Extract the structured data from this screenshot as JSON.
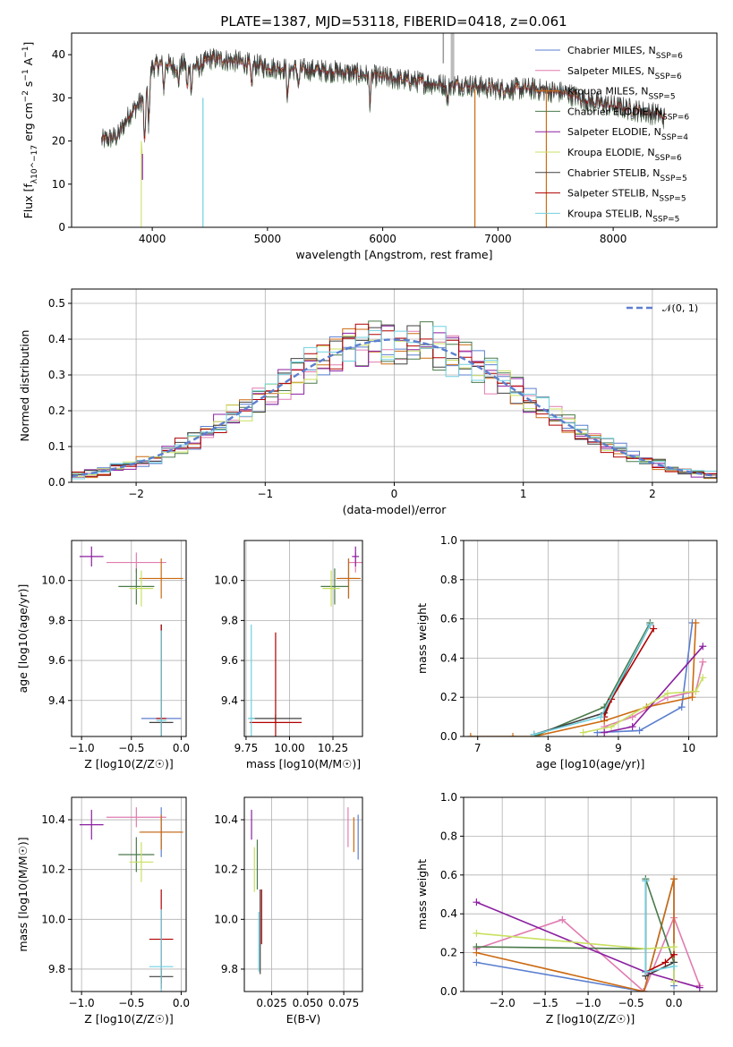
{
  "title": "PLATE=1387, MJD=53118, FIBERID=0418, z=0.061",
  "colors": [
    "#5b7fcf",
    "#e07cb0",
    "#cc6a10",
    "#4a7a4a",
    "#8b1fa0",
    "#c8e060",
    "#404040",
    "#b00000",
    "#70d0e0"
  ],
  "chart_data": [
    {
      "id": "spectrum",
      "type": "line",
      "xlabel": "wavelength [Angstrom, rest frame]",
      "ylabel": "Flux [f_λ10^−17 erg cm^−2 s^−1 A^−1]",
      "xlim": [
        3300,
        8900
      ],
      "ylim": [
        0,
        45
      ],
      "xticks": [
        4000,
        5000,
        6000,
        7000,
        8000
      ],
      "yticks": [
        0,
        10,
        20,
        30,
        40
      ],
      "legend": "top-right",
      "grid": false,
      "series": [
        {
          "name": "Chabrier MILES, N_SSP=6"
        },
        {
          "name": "Salpeter MILES, N_SSP=6"
        },
        {
          "name": "Kroupa MILES, N_SSP=5"
        },
        {
          "name": "Chabrier ELODIE, N_SSP=6"
        },
        {
          "name": "Salpeter ELODIE, N_SSP=4"
        },
        {
          "name": "Kroupa ELODIE, N_SSP=6"
        },
        {
          "name": "Chabrier STELIB, N_SSP=5"
        },
        {
          "name": "Salpeter STELIB, N_SSP=5"
        },
        {
          "name": "Kroupa STELIB, N_SSP=5"
        }
      ],
      "continuum": [
        [
          3560,
          20
        ],
        [
          3700,
          21
        ],
        [
          3800,
          26
        ],
        [
          3900,
          29
        ],
        [
          3950,
          32
        ],
        [
          4000,
          37
        ],
        [
          4100,
          38
        ],
        [
          4200,
          37
        ],
        [
          4300,
          38
        ],
        [
          4400,
          37
        ],
        [
          4500,
          39
        ],
        [
          4700,
          38.5
        ],
        [
          5000,
          37
        ],
        [
          5300,
          36.5
        ],
        [
          5600,
          36
        ],
        [
          5900,
          35
        ],
        [
          6200,
          34
        ],
        [
          6500,
          33
        ],
        [
          6700,
          33
        ],
        [
          7000,
          32
        ],
        [
          7300,
          32
        ],
        [
          7600,
          31
        ],
        [
          7800,
          29
        ],
        [
          8000,
          28
        ],
        [
          8200,
          27
        ],
        [
          8400,
          26
        ],
        [
          8450,
          25
        ]
      ]
    },
    {
      "id": "residuals",
      "type": "bar",
      "xlabel": "(data-model)/error",
      "ylabel": "Normed distribution",
      "xlim": [
        -2.5,
        2.5
      ],
      "ylim": [
        0,
        0.54
      ],
      "xticks": [
        -2,
        -1,
        0,
        1,
        2
      ],
      "yticks": [
        0.0,
        0.1,
        0.2,
        0.3,
        0.4,
        0.5
      ],
      "xtick_labels": [
        "−2",
        "−1",
        "0",
        "1",
        "2"
      ],
      "ytick_labels": [
        "0.0",
        "0.1",
        "0.2",
        "0.3",
        "0.4",
        "0.5"
      ],
      "grid": true,
      "legend": "top-right",
      "gaussian_label": "𝒩(0, 1)",
      "bin_width": 0.1
    },
    {
      "id": "age-vs-Z",
      "type": "scatter",
      "xlabel": "Z [log10(Z/Z☉)]",
      "ylabel": "age [log10(age/yr)]",
      "xlim": [
        -1.1,
        0.05
      ],
      "ylim": [
        9.22,
        10.2
      ],
      "xticks": [
        -1.0,
        -0.5,
        0.0
      ],
      "yticks": [
        9.4,
        9.6,
        9.8,
        10.0
      ],
      "xtick_labels": [
        "−1.0",
        "−0.5",
        "0.0"
      ],
      "ytick_labels": [
        "9.4",
        "9.6",
        "9.8",
        "10.0"
      ],
      "points": [
        {
          "x": -0.2,
          "y": 9.31,
          "xerr": 0.2,
          "yerr": 0.02
        },
        {
          "x": -0.45,
          "y": 10.09,
          "xerr": 0.3,
          "yerr": 0.05
        },
        {
          "x": -0.2,
          "y": 10.01,
          "xerr": 0.22,
          "yerr": 0.1
        },
        {
          "x": -0.45,
          "y": 9.97,
          "xerr": 0.18,
          "yerr": 0.09
        },
        {
          "x": -0.9,
          "y": 10.12,
          "xerr": 0.12,
          "yerr": 0.05
        },
        {
          "x": -0.4,
          "y": 9.96,
          "xerr": 0.12,
          "yerr": 0.09
        },
        {
          "x": -0.2,
          "y": 9.29,
          "xerr": 0.12,
          "yerr": 0.49
        },
        {
          "x": -0.2,
          "y": 9.31,
          "xerr": 0.05,
          "yerr": 0.47
        },
        {
          "x": -0.2,
          "y": 9.3,
          "xerr": 0.05,
          "yerr": 0.45
        }
      ]
    },
    {
      "id": "age-vs-mass",
      "type": "scatter",
      "xlabel": "mass [log10(M/M☉)]",
      "ylabel": "",
      "xlim": [
        9.74,
        10.42
      ],
      "ylim": [
        9.22,
        10.2
      ],
      "xticks": [
        9.75,
        10.0,
        10.25
      ],
      "yticks": [
        9.4,
        9.6,
        9.8,
        10.0
      ],
      "xtick_labels": [
        "9.75",
        "10.00",
        "10.25"
      ],
      "ytick_labels": [
        "9.4",
        "9.6",
        "9.8",
        "10.0"
      ],
      "points": [
        {
          "x": 10.34,
          "y": 10.01,
          "xerr": 0.05,
          "yerr": 0.1
        },
        {
          "x": 10.38,
          "y": 10.09,
          "xerr": 0.04,
          "yerr": 0.05
        },
        {
          "x": 10.34,
          "y": 10.01,
          "xerr": 0.07,
          "yerr": 0.1
        },
        {
          "x": 10.26,
          "y": 9.97,
          "xerr": 0.08,
          "yerr": 0.09
        },
        {
          "x": 10.38,
          "y": 10.12,
          "xerr": 0.02,
          "yerr": 0.05
        },
        {
          "x": 10.24,
          "y": 9.96,
          "xerr": 0.05,
          "yerr": 0.09
        },
        {
          "x": 9.92,
          "y": 9.31,
          "xerr": 0.15,
          "yerr": 0.02
        },
        {
          "x": 9.92,
          "y": 9.29,
          "xerr": 0.15,
          "yerr": 0.45
        },
        {
          "x": 9.78,
          "y": 9.31,
          "xerr": 0.02,
          "yerr": 0.47
        }
      ]
    },
    {
      "id": "massweight-vs-age",
      "type": "line",
      "xlabel": "age [log10(age/yr)]",
      "ylabel": "mass weight",
      "xlim": [
        6.8,
        10.4
      ],
      "ylim": [
        0,
        1
      ],
      "xticks": [
        7,
        8,
        9,
        10
      ],
      "yticks": [
        0.0,
        0.2,
        0.4,
        0.6,
        0.8,
        1.0
      ],
      "xtick_labels": [
        "7",
        "8",
        "9",
        "10"
      ],
      "ytick_labels": [
        "0.0",
        "0.2",
        "0.4",
        "0.6",
        "0.8",
        "1.0"
      ],
      "grid": true,
      "series": [
        {
          "x": [
            8.7,
            9.3,
            9.9,
            10.05
          ],
          "y": [
            0.02,
            0.03,
            0.15,
            0.58
          ]
        },
        {
          "x": [
            8.8,
            9.2,
            9.7,
            10.1,
            10.2
          ],
          "y": [
            0.05,
            0.1,
            0.2,
            0.23,
            0.38
          ]
        },
        {
          "x": [
            6.9,
            7.5,
            7.8,
            8.8,
            9.4,
            10.05,
            10.1
          ],
          "y": [
            0.0,
            0.0,
            0.0,
            0.08,
            0.15,
            0.2,
            0.58
          ]
        },
        {
          "x": [
            7.8,
            8.8,
            9.45
          ],
          "y": [
            0.0,
            0.15,
            0.58
          ]
        },
        {
          "x": [
            8.8,
            9.2,
            10.2
          ],
          "y": [
            0.02,
            0.05,
            0.46
          ]
        },
        {
          "x": [
            8.5,
            8.9,
            9.7,
            10.1,
            10.2
          ],
          "y": [
            0.02,
            0.05,
            0.22,
            0.23,
            0.3
          ]
        },
        {
          "x": [
            7.8,
            8.8,
            9.45
          ],
          "y": [
            0.01,
            0.12,
            0.57
          ]
        },
        {
          "x": [
            8.8,
            8.9,
            9.5
          ],
          "y": [
            0.1,
            0.19,
            0.55
          ]
        },
        {
          "x": [
            7.8,
            8.75,
            9.45
          ],
          "y": [
            0.01,
            0.1,
            0.57
          ]
        }
      ]
    },
    {
      "id": "mass-vs-Z",
      "type": "scatter",
      "xlabel": "Z [log10(Z/Z☉)]",
      "ylabel": "mass [log10(M/M☉)]",
      "xlim": [
        -1.1,
        0.05
      ],
      "ylim": [
        9.71,
        10.49
      ],
      "xticks": [
        -1.0,
        -0.5,
        0.0
      ],
      "yticks": [
        9.8,
        10.0,
        10.2,
        10.4
      ],
      "xtick_labels": [
        "−1.0",
        "−0.5",
        "0.0"
      ],
      "ytick_labels": [
        "9.8",
        "10.0",
        "10.2",
        "10.4"
      ],
      "points": [
        {
          "x": -0.2,
          "y": 10.35,
          "xerr": 0.2,
          "yerr": 0.1
        },
        {
          "x": -0.45,
          "y": 10.41,
          "xerr": 0.3,
          "yerr": 0.04
        },
        {
          "x": -0.2,
          "y": 10.35,
          "xerr": 0.22,
          "yerr": 0.07
        },
        {
          "x": -0.45,
          "y": 10.26,
          "xerr": 0.18,
          "yerr": 0.07
        },
        {
          "x": -0.9,
          "y": 10.38,
          "xerr": 0.12,
          "yerr": 0.06
        },
        {
          "x": -0.4,
          "y": 10.23,
          "xerr": 0.12,
          "yerr": 0.08
        },
        {
          "x": -0.2,
          "y": 9.77,
          "xerr": 0.12,
          "yerr": 0.03
        },
        {
          "x": -0.2,
          "y": 9.92,
          "xerr": 0.12,
          "yerr": 0.2
        },
        {
          "x": -0.2,
          "y": 9.81,
          "xerr": 0.12,
          "yerr": 0.23
        }
      ]
    },
    {
      "id": "mass-vs-EBV",
      "type": "scatter",
      "xlabel": "E(B-V)",
      "ylabel": "",
      "xlim": [
        0.006,
        0.088
      ],
      "ylim": [
        9.71,
        10.49
      ],
      "xticks": [
        0.025,
        0.05,
        0.075
      ],
      "yticks": [
        9.8,
        10.0,
        10.2,
        10.4
      ],
      "xtick_labels": [
        "0.025",
        "0.050",
        "0.075"
      ],
      "ytick_labels": [
        "9.8",
        "10.0",
        "10.2",
        "10.4"
      ],
      "points": [
        {
          "x": 0.085,
          "y": 10.33,
          "xerr": 0,
          "yerr": 0.09
        },
        {
          "x": 0.078,
          "y": 10.37,
          "xerr": 0,
          "yerr": 0.08
        },
        {
          "x": 0.082,
          "y": 10.34,
          "xerr": 0,
          "yerr": 0.07
        },
        {
          "x": 0.015,
          "y": 10.22,
          "xerr": 0,
          "yerr": 0.1
        },
        {
          "x": 0.011,
          "y": 10.38,
          "xerr": 0,
          "yerr": 0.06
        },
        {
          "x": 0.013,
          "y": 10.2,
          "xerr": 0,
          "yerr": 0.09
        },
        {
          "x": 0.017,
          "y": 9.95,
          "xerr": 0,
          "yerr": 0.17
        },
        {
          "x": 0.018,
          "y": 10.01,
          "xerr": 0,
          "yerr": 0.11
        },
        {
          "x": 0.016,
          "y": 9.91,
          "xerr": 0,
          "yerr": 0.12
        }
      ]
    },
    {
      "id": "massweight-vs-Z",
      "type": "line",
      "xlabel": "Z [log10(Z/Z☉)]",
      "ylabel": "mass weight",
      "xlim": [
        -2.45,
        0.5
      ],
      "ylim": [
        0,
        1
      ],
      "xticks": [
        -2.0,
        -1.5,
        -1.0,
        -0.5,
        0.0
      ],
      "yticks": [
        0.0,
        0.2,
        0.4,
        0.6,
        0.8,
        1.0
      ],
      "xtick_labels": [
        "−2.0",
        "−1.5",
        "−1.0",
        "−0.5",
        "0.0"
      ],
      "ytick_labels": [
        "0.0",
        "0.2",
        "0.4",
        "0.6",
        "0.8",
        "1.0"
      ],
      "grid": true,
      "series": [
        {
          "x": [
            -2.3,
            -0.35,
            0.0,
            0.0
          ],
          "y": [
            0.15,
            0.0,
            0.58,
            0.03
          ]
        },
        {
          "x": [
            -2.3,
            -1.3,
            -0.35,
            0.0,
            0.3
          ],
          "y": [
            0.22,
            0.37,
            0.0,
            0.38,
            0.03
          ]
        },
        {
          "x": [
            -2.3,
            -0.35,
            0.0,
            0.0
          ],
          "y": [
            0.2,
            0.0,
            0.58,
            0.15
          ]
        },
        {
          "x": [
            -2.3,
            -0.33,
            -0.33,
            0.0
          ],
          "y": [
            0.23,
            0.22,
            0.58,
            0.15
          ]
        },
        {
          "x": [
            -2.3,
            -0.33,
            0.3
          ],
          "y": [
            0.46,
            0.1,
            0.02
          ]
        },
        {
          "x": [
            -2.3,
            -0.33,
            0.0,
            0.0
          ],
          "y": [
            0.3,
            0.22,
            0.23,
            0.05
          ]
        },
        {
          "x": [
            -0.33,
            -0.33,
            0.0
          ],
          "y": [
            0.57,
            0.08,
            0.15
          ]
        },
        {
          "x": [
            -0.33,
            -0.1,
            0.0
          ],
          "y": [
            0.1,
            0.15,
            0.19
          ]
        },
        {
          "x": [
            -0.33,
            -0.33,
            0.0
          ],
          "y": [
            0.57,
            0.1,
            0.13
          ]
        }
      ]
    }
  ]
}
